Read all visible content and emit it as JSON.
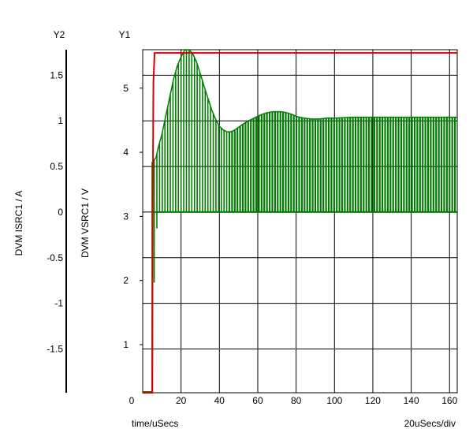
{
  "chart_data": {
    "type": "line",
    "axes": {
      "y2_header": "Y2",
      "y1_header": "Y1",
      "y2_label": "DVM ISRC1 / A",
      "y1_label": "DVM VSRC1 / V",
      "x_label": "time/uSecs",
      "x_scale_note": "20uSecs/div",
      "xlim": [
        0,
        164
      ],
      "y1lim": [
        0.25,
        5.6
      ],
      "y2lim": [
        -1.98,
        1.78
      ],
      "x_ticks": [
        "0",
        "20",
        "40",
        "60",
        "80",
        "100",
        "120",
        "140",
        "160"
      ],
      "y1_ticks": [
        "1",
        "2",
        "3",
        "4",
        "5"
      ],
      "y2_ticks": [
        "1.5",
        "1",
        "0.5",
        "0",
        "-0.5",
        "-1",
        "-1.5"
      ],
      "grid": true
    },
    "series": [
      {
        "axis": "y1",
        "color": "#d40000",
        "x": [
          0,
          5,
          5.2,
          5.6,
          6.2,
          164
        ],
        "y": [
          0.25,
          0.25,
          2.9,
          5.1,
          5.55,
          5.55
        ]
      },
      {
        "axis": "y2",
        "color": "#007d00",
        "x": [
          0,
          5,
          5.2,
          7,
          8,
          10,
          12,
          14,
          16,
          18,
          20,
          22,
          24,
          26,
          28,
          30,
          32,
          34,
          36,
          38,
          40,
          42,
          44,
          46,
          48,
          50,
          52,
          55,
          58,
          60,
          62,
          65,
          68,
          70,
          72,
          75,
          78,
          80,
          84,
          88,
          92,
          96,
          100,
          110,
          120,
          130,
          140,
          150,
          160,
          164
        ],
        "upper": [
          -1.98,
          -1.98,
          0.55,
          0.6,
          0.7,
          0.85,
          1.05,
          1.25,
          1.45,
          1.6,
          1.7,
          1.78,
          1.78,
          1.74,
          1.65,
          1.52,
          1.38,
          1.25,
          1.12,
          1.02,
          0.94,
          0.9,
          0.88,
          0.88,
          0.9,
          0.93,
          0.96,
          1.0,
          1.03,
          1.05,
          1.07,
          1.09,
          1.1,
          1.1,
          1.1,
          1.09,
          1.07,
          1.05,
          1.03,
          1.02,
          1.02,
          1.03,
          1.03,
          1.04,
          1.04,
          1.04,
          1.04,
          1.04,
          1.04,
          1.04
        ],
        "lower": [
          -1.98,
          -1.98,
          -1.15,
          -0.3,
          0.0,
          0.0,
          0.0,
          0.0,
          0.0,
          0.0,
          0.0,
          0.0,
          0.0,
          0.0,
          0.0,
          0.0,
          0.0,
          0.0,
          0.0,
          0.0,
          0.0,
          0.0,
          0.0,
          0.0,
          0.0,
          0.0,
          0.0,
          0.0,
          0.0,
          0.0,
          0.0,
          0.0,
          0.0,
          0.0,
          0.0,
          0.0,
          0.0,
          0.0,
          0.0,
          0.0,
          0.0,
          0.0,
          0.0,
          0.0,
          0.0,
          0.0,
          0.0,
          0.0,
          0.0,
          0.0
        ],
        "switching_period_us": 1.4
      }
    ]
  }
}
